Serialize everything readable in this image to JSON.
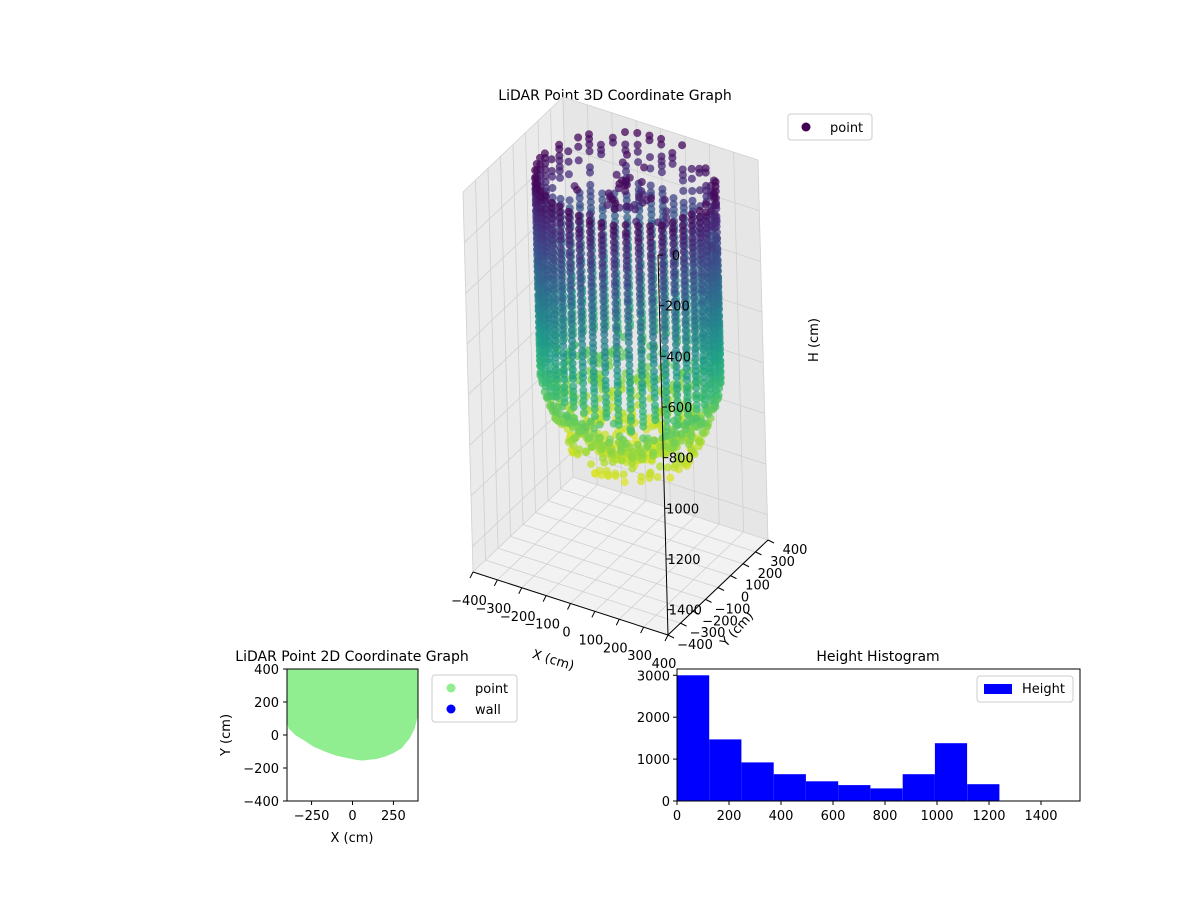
{
  "chart_data": [
    {
      "type": "scatter",
      "title": "LiDAR Point 3D Coordinate Graph",
      "xlabel": "X (cm)",
      "ylabel": "Y (cm)",
      "zlabel": "H (cm)",
      "x_ticks": [
        "−400",
        "−300",
        "−200",
        "−100",
        "0",
        "100",
        "200",
        "300",
        "400"
      ],
      "y_ticks": [
        "−400",
        "−300",
        "−200",
        "−100",
        "0",
        "100",
        "200",
        "300",
        "400"
      ],
      "z_ticks": [
        "0",
        "200",
        "400",
        "600",
        "800",
        "1000",
        "1200",
        "1400"
      ],
      "xlim": [
        -400,
        400
      ],
      "ylim": [
        -400,
        400
      ],
      "zlim": [
        0,
        1500
      ],
      "z_inverted": true,
      "colormap": "viridis",
      "legend": [
        {
          "label": "point",
          "color": "#440154"
        }
      ],
      "legend_position": "upper-right outside"
    },
    {
      "type": "scatter",
      "title": "LiDAR Point 2D Coordinate Graph",
      "xlabel": "X (cm)",
      "ylabel": "Y (cm)",
      "x_ticks": [
        "−250",
        "0",
        "250"
      ],
      "y_ticks": [
        "400",
        "200",
        "0",
        "−200",
        "−400"
      ],
      "xlim": [
        -400,
        400
      ],
      "ylim": [
        -400,
        400
      ],
      "legend": [
        {
          "label": "point",
          "color": "#90ee90"
        },
        {
          "label": "wall",
          "color": "#0000ff"
        }
      ],
      "legend_position": "upper-right outside",
      "region_boundary": [
        [
          -400,
          400
        ],
        [
          400,
          400
        ],
        [
          400,
          120
        ],
        [
          380,
          40
        ],
        [
          350,
          -20
        ],
        [
          300,
          -80
        ],
        [
          250,
          -110
        ],
        [
          200,
          -130
        ],
        [
          150,
          -145
        ],
        [
          100,
          -150
        ],
        [
          60,
          -155
        ],
        [
          20,
          -150
        ],
        [
          -30,
          -140
        ],
        [
          -100,
          -125
        ],
        [
          -170,
          -100
        ],
        [
          -240,
          -70
        ],
        [
          -300,
          -30
        ],
        [
          -350,
          0
        ],
        [
          -390,
          40
        ],
        [
          -400,
          80
        ]
      ]
    },
    {
      "type": "bar",
      "title": "Height Histogram",
      "xlabel": "",
      "ylabel": "",
      "x_ticks": [
        "0",
        "200",
        "400",
        "600",
        "800",
        "1000",
        "1200",
        "1400"
      ],
      "y_ticks": [
        "0",
        "1000",
        "2000",
        "3000"
      ],
      "xlim": [
        0,
        1550
      ],
      "ylim": [
        0,
        3150
      ],
      "bin_edges": [
        0,
        124,
        248,
        372,
        496,
        620,
        744,
        868,
        992,
        1116,
        1240
      ],
      "series": [
        {
          "name": "Height",
          "values": [
            3000,
            1470,
            920,
            640,
            470,
            380,
            300,
            640,
            1380,
            400
          ]
        }
      ],
      "color": "#0000ff",
      "legend_position": "top-right"
    }
  ]
}
